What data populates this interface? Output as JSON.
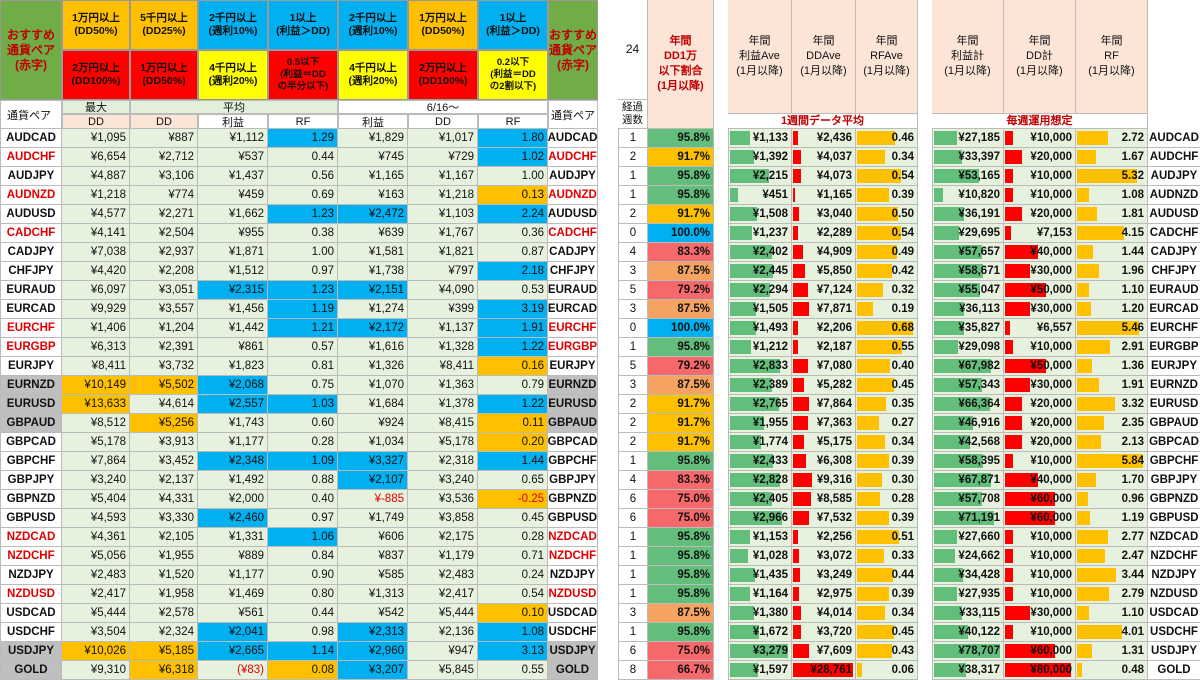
{
  "left_headers": {
    "recommend": "おすすめ\n通貨ペア\n(赤字)",
    "top": [
      "1万円以上\n(DD50%)",
      "5千円以上\n(DD25%)",
      "2千円以上\n(週利10%)",
      "1以上\n(利益＞DD)",
      "2千円以上\n(週利10%)",
      "1万円以上\n(DD50%)",
      "1以上\n(利益＞DD)"
    ],
    "bottom": [
      "2万円以上\n(DD100%)",
      "1万円以上\n(DD50%)",
      "4千円以上\n(週利20%)",
      "0.5以下\n(利益＝DD\nの半分以下)",
      "4千円以上\n(週利20%)",
      "2万円以上\n(DD100%)",
      "0.2以下\n(利益＝DD\nの2割以下)"
    ],
    "pair_label": "通貨ペア",
    "max_label": "最大",
    "avg_label": "平均",
    "date_label": "6/16～",
    "sub": [
      "DD",
      "DD",
      "利益",
      "RF",
      "利益",
      "DD",
      "RF"
    ]
  },
  "middle_headers": {
    "count": "24",
    "elapsed": "経過\n週数",
    "dd_rate": "年間\nDD1万\n以下割合\n(1月以降)"
  },
  "right_headers": {
    "cols1": [
      "年間\n利益Ave\n(1月以降)",
      "年間\nDDAve\n(1月以降)",
      "年間\nRFAve\n(1月以降)"
    ],
    "section1": "1週間データ平均",
    "cols2": [
      "年間\n利益計\n(1月以降)",
      "年間\nDD計\n(1月以降)",
      "年間\nRF\n(1月以降)"
    ],
    "section2": "毎週運用想定"
  },
  "rows": [
    {
      "pair": "AUDCAD",
      "rec": false,
      "pg": "",
      "c": [
        "¥1,095",
        "¥887",
        "¥1,112",
        "1.29",
        "¥1,829",
        "¥1,017",
        "1.80"
      ],
      "f": [
        "",
        "",
        "",
        "b",
        "",
        "",
        "b"
      ],
      "w": 1,
      "pct": "95.8%",
      "pc": "g",
      "pa": "¥1,133",
      "dda": "¥2,436",
      "rfa": "0.46",
      "pt": "¥27,185",
      "ddt": "¥10,000",
      "rft": "2.72"
    },
    {
      "pair": "AUDCHF",
      "rec": true,
      "pg": "",
      "c": [
        "¥6,654",
        "¥2,712",
        "¥537",
        "0.44",
        "¥745",
        "¥729",
        "1.02"
      ],
      "f": [
        "",
        "",
        "",
        "",
        "",
        "",
        "b"
      ],
      "w": 2,
      "pct": "91.7%",
      "pc": "y",
      "pa": "¥1,392",
      "dda": "¥4,037",
      "rfa": "0.34",
      "pt": "¥33,397",
      "ddt": "¥20,000",
      "rft": "1.67"
    },
    {
      "pair": "AUDJPY",
      "rec": false,
      "pg": "",
      "c": [
        "¥4,887",
        "¥3,106",
        "¥1,437",
        "0.56",
        "¥1,165",
        "¥1,167",
        "1.00"
      ],
      "f": [
        "",
        "",
        "",
        "",
        "",
        "",
        ""
      ],
      "w": 1,
      "pct": "95.8%",
      "pc": "g",
      "pa": "¥2,215",
      "dda": "¥4,073",
      "rfa": "0.54",
      "pt": "¥53,165",
      "ddt": "¥10,000",
      "rft": "5.32"
    },
    {
      "pair": "AUDNZD",
      "rec": true,
      "pg": "",
      "c": [
        "¥1,218",
        "¥774",
        "¥459",
        "0.69",
        "¥163",
        "¥1,218",
        "0.13"
      ],
      "f": [
        "",
        "",
        "",
        "",
        "",
        "",
        "y"
      ],
      "w": 1,
      "pct": "95.8%",
      "pc": "g",
      "pa": "¥451",
      "dda": "¥1,165",
      "rfa": "0.39",
      "pt": "¥10,820",
      "ddt": "¥10,000",
      "rft": "1.08"
    },
    {
      "pair": "AUDUSD",
      "rec": false,
      "pg": "",
      "c": [
        "¥4,577",
        "¥2,271",
        "¥1,662",
        "1.23",
        "¥2,472",
        "¥1,103",
        "2.24"
      ],
      "f": [
        "",
        "",
        "",
        "b",
        "b",
        "",
        "b"
      ],
      "w": 2,
      "pct": "91.7%",
      "pc": "y",
      "pa": "¥1,508",
      "dda": "¥3,040",
      "rfa": "0.50",
      "pt": "¥36,191",
      "ddt": "¥20,000",
      "rft": "1.81"
    },
    {
      "pair": "CADCHF",
      "rec": true,
      "pg": "",
      "c": [
        "¥4,141",
        "¥2,504",
        "¥955",
        "0.38",
        "¥639",
        "¥1,767",
        "0.36"
      ],
      "f": [
        "",
        "",
        "",
        "",
        "",
        "",
        ""
      ],
      "w": 0,
      "pct": "100.0%",
      "pc": "b",
      "pa": "¥1,237",
      "dda": "¥2,289",
      "rfa": "0.54",
      "pt": "¥29,695",
      "ddt": "¥7,153",
      "rft": "4.15"
    },
    {
      "pair": "CADJPY",
      "rec": false,
      "pg": "",
      "c": [
        "¥7,038",
        "¥2,937",
        "¥1,871",
        "1.00",
        "¥1,581",
        "¥1,821",
        "0.87"
      ],
      "f": [
        "",
        "",
        "",
        "",
        "",
        "",
        ""
      ],
      "w": 4,
      "pct": "83.3%",
      "pc": "r",
      "pa": "¥2,402",
      "dda": "¥4,909",
      "rfa": "0.49",
      "pt": "¥57,657",
      "ddt": "¥40,000",
      "rft": "1.44"
    },
    {
      "pair": "CHFJPY",
      "rec": false,
      "pg": "",
      "c": [
        "¥4,420",
        "¥2,208",
        "¥1,512",
        "0.97",
        "¥1,738",
        "¥797",
        "2.18"
      ],
      "f": [
        "",
        "",
        "",
        "",
        "",
        "",
        "b"
      ],
      "w": 3,
      "pct": "87.5%",
      "pc": "o",
      "pa": "¥2,445",
      "dda": "¥5,850",
      "rfa": "0.42",
      "pt": "¥58,671",
      "ddt": "¥30,000",
      "rft": "1.96"
    },
    {
      "pair": "EURAUD",
      "rec": false,
      "pg": "",
      "c": [
        "¥6,097",
        "¥3,051",
        "¥2,315",
        "1.23",
        "¥2,151",
        "¥4,090",
        "0.53"
      ],
      "f": [
        "",
        "",
        "b",
        "b",
        "b",
        "",
        ""
      ],
      "w": 5,
      "pct": "79.2%",
      "pc": "r",
      "pa": "¥2,294",
      "dda": "¥7,124",
      "rfa": "0.32",
      "pt": "¥55,047",
      "ddt": "¥50,000",
      "rft": "1.10"
    },
    {
      "pair": "EURCAD",
      "rec": false,
      "pg": "",
      "c": [
        "¥9,929",
        "¥3,557",
        "¥1,456",
        "1.19",
        "¥1,274",
        "¥399",
        "3.19"
      ],
      "f": [
        "",
        "",
        "",
        "b",
        "",
        "",
        "b"
      ],
      "w": 3,
      "pct": "87.5%",
      "pc": "o",
      "pa": "¥1,505",
      "dda": "¥7,871",
      "rfa": "0.19",
      "pt": "¥36,113",
      "ddt": "¥30,000",
      "rft": "1.20"
    },
    {
      "pair": "EURCHF",
      "rec": true,
      "pg": "",
      "c": [
        "¥1,406",
        "¥1,204",
        "¥1,442",
        "1.21",
        "¥2,172",
        "¥1,137",
        "1.91"
      ],
      "f": [
        "",
        "",
        "",
        "b",
        "b",
        "",
        "b"
      ],
      "w": 0,
      "pct": "100.0%",
      "pc": "b",
      "pa": "¥1,493",
      "dda": "¥2,206",
      "rfa": "0.68",
      "pt": "¥35,827",
      "ddt": "¥6,557",
      "rft": "5.46"
    },
    {
      "pair": "EURGBP",
      "rec": true,
      "pg": "",
      "c": [
        "¥6,313",
        "¥2,391",
        "¥861",
        "0.57",
        "¥1,616",
        "¥1,328",
        "1.22"
      ],
      "f": [
        "",
        "",
        "",
        "",
        "",
        "",
        "b"
      ],
      "w": 1,
      "pct": "95.8%",
      "pc": "g",
      "pa": "¥1,212",
      "dda": "¥2,187",
      "rfa": "0.55",
      "pt": "¥29,098",
      "ddt": "¥10,000",
      "rft": "2.91"
    },
    {
      "pair": "EURJPY",
      "rec": false,
      "pg": "",
      "c": [
        "¥8,411",
        "¥3,732",
        "¥1,823",
        "0.81",
        "¥1,326",
        "¥8,411",
        "0.16"
      ],
      "f": [
        "",
        "",
        "",
        "",
        "",
        "",
        "y"
      ],
      "w": 5,
      "pct": "79.2%",
      "pc": "r",
      "pa": "¥2,833",
      "dda": "¥7,080",
      "rfa": "0.40",
      "pt": "¥67,982",
      "ddt": "¥50,000",
      "rft": "1.36"
    },
    {
      "pair": "EURNZD",
      "rec": false,
      "pg": "gr",
      "c": [
        "¥10,149",
        "¥5,502",
        "¥2,068",
        "0.75",
        "¥1,070",
        "¥1,363",
        "0.79"
      ],
      "f": [
        "y",
        "y",
        "b",
        "",
        "",
        "",
        ""
      ],
      "w": 3,
      "pct": "87.5%",
      "pc": "o",
      "pa": "¥2,389",
      "dda": "¥5,282",
      "rfa": "0.45",
      "pt": "¥57,343",
      "ddt": "¥30,000",
      "rft": "1.91"
    },
    {
      "pair": "EURUSD",
      "rec": false,
      "pg": "gr",
      "c": [
        "¥13,633",
        "¥4,614",
        "¥2,557",
        "1.03",
        "¥1,684",
        "¥1,378",
        "1.22"
      ],
      "f": [
        "y",
        "",
        "b",
        "b",
        "",
        "",
        "b"
      ],
      "w": 2,
      "pct": "91.7%",
      "pc": "y",
      "pa": "¥2,765",
      "dda": "¥7,864",
      "rfa": "0.35",
      "pt": "¥66,364",
      "ddt": "¥20,000",
      "rft": "3.32"
    },
    {
      "pair": "GBPAUD",
      "rec": false,
      "pg": "gr",
      "c": [
        "¥8,512",
        "¥5,256",
        "¥1,743",
        "0.60",
        "¥924",
        "¥8,415",
        "0.11"
      ],
      "f": [
        "",
        "y",
        "",
        "",
        "",
        "",
        "y"
      ],
      "w": 2,
      "pct": "91.7%",
      "pc": "y",
      "pa": "¥1,955",
      "dda": "¥7,363",
      "rfa": "0.27",
      "pt": "¥46,916",
      "ddt": "¥20,000",
      "rft": "2.35"
    },
    {
      "pair": "GBPCAD",
      "rec": false,
      "pg": "",
      "c": [
        "¥5,178",
        "¥3,913",
        "¥1,177",
        "0.28",
        "¥1,034",
        "¥5,178",
        "0.20"
      ],
      "f": [
        "",
        "",
        "",
        "",
        "",
        "",
        "y"
      ],
      "w": 2,
      "pct": "91.7%",
      "pc": "y",
      "pa": "¥1,774",
      "dda": "¥5,175",
      "rfa": "0.34",
      "pt": "¥42,568",
      "ddt": "¥20,000",
      "rft": "2.13"
    },
    {
      "pair": "GBPCHF",
      "rec": false,
      "pg": "",
      "c": [
        "¥7,864",
        "¥3,452",
        "¥2,348",
        "1.09",
        "¥3,327",
        "¥2,318",
        "1.44"
      ],
      "f": [
        "",
        "",
        "b",
        "b",
        "b",
        "",
        "b"
      ],
      "w": 1,
      "pct": "95.8%",
      "pc": "g",
      "pa": "¥2,433",
      "dda": "¥6,308",
      "rfa": "0.39",
      "pt": "¥58,395",
      "ddt": "¥10,000",
      "rft": "5.84"
    },
    {
      "pair": "GBPJPY",
      "rec": false,
      "pg": "",
      "c": [
        "¥3,240",
        "¥2,137",
        "¥1,492",
        "0.88",
        "¥2,107",
        "¥3,240",
        "0.65"
      ],
      "f": [
        "",
        "",
        "",
        "",
        "b",
        "",
        ""
      ],
      "w": 4,
      "pct": "83.3%",
      "pc": "r",
      "pa": "¥2,828",
      "dda": "¥9,316",
      "rfa": "0.30",
      "pt": "¥67,871",
      "ddt": "¥40,000",
      "rft": "1.70"
    },
    {
      "pair": "GBPNZD",
      "rec": false,
      "pg": "",
      "c": [
        "¥5,404",
        "¥4,331",
        "¥2,000",
        "0.40",
        "¥-885",
        "¥3,536",
        "-0.25"
      ],
      "f": [
        "",
        "",
        "",
        "",
        "rd",
        "",
        "y rd"
      ],
      "w": 6,
      "pct": "75.0%",
      "pc": "r",
      "pa": "¥2,405",
      "dda": "¥8,585",
      "rfa": "0.28",
      "pt": "¥57,708",
      "ddt": "¥60,000",
      "rft": "0.96"
    },
    {
      "pair": "GBPUSD",
      "rec": false,
      "pg": "",
      "c": [
        "¥4,593",
        "¥3,330",
        "¥2,460",
        "0.97",
        "¥1,749",
        "¥3,858",
        "0.45"
      ],
      "f": [
        "",
        "",
        "b",
        "",
        "",
        "",
        ""
      ],
      "w": 6,
      "pct": "75.0%",
      "pc": "r",
      "pa": "¥2,966",
      "dda": "¥7,532",
      "rfa": "0.39",
      "pt": "¥71,191",
      "ddt": "¥60,000",
      "rft": "1.19"
    },
    {
      "pair": "NZDCAD",
      "rec": true,
      "pg": "",
      "c": [
        "¥4,361",
        "¥2,105",
        "¥1,331",
        "1.06",
        "¥606",
        "¥2,175",
        "0.28"
      ],
      "f": [
        "",
        "",
        "",
        "b",
        "",
        "",
        ""
      ],
      "w": 1,
      "pct": "95.8%",
      "pc": "g",
      "pa": "¥1,153",
      "dda": "¥2,256",
      "rfa": "0.51",
      "pt": "¥27,660",
      "ddt": "¥10,000",
      "rft": "2.77"
    },
    {
      "pair": "NZDCHF",
      "rec": true,
      "pg": "",
      "c": [
        "¥5,056",
        "¥1,955",
        "¥889",
        "0.84",
        "¥837",
        "¥1,179",
        "0.71"
      ],
      "f": [
        "",
        "",
        "",
        "",
        "",
        "",
        ""
      ],
      "w": 1,
      "pct": "95.8%",
      "pc": "g",
      "pa": "¥1,028",
      "dda": "¥3,072",
      "rfa": "0.33",
      "pt": "¥24,662",
      "ddt": "¥10,000",
      "rft": "2.47"
    },
    {
      "pair": "NZDJPY",
      "rec": false,
      "pg": "",
      "c": [
        "¥2,483",
        "¥1,520",
        "¥1,177",
        "0.90",
        "¥585",
        "¥2,483",
        "0.24"
      ],
      "f": [
        "",
        "",
        "",
        "",
        "",
        "",
        ""
      ],
      "w": 1,
      "pct": "95.8%",
      "pc": "g",
      "pa": "¥1,435",
      "dda": "¥3,249",
      "rfa": "0.44",
      "pt": "¥34,428",
      "ddt": "¥10,000",
      "rft": "3.44"
    },
    {
      "pair": "NZDUSD",
      "rec": true,
      "pg": "",
      "c": [
        "¥2,417",
        "¥1,958",
        "¥1,469",
        "0.80",
        "¥1,313",
        "¥2,417",
        "0.54"
      ],
      "f": [
        "",
        "",
        "",
        "",
        "",
        "",
        ""
      ],
      "w": 1,
      "pct": "95.8%",
      "pc": "g",
      "pa": "¥1,164",
      "dda": "¥2,975",
      "rfa": "0.39",
      "pt": "¥27,935",
      "ddt": "¥10,000",
      "rft": "2.79"
    },
    {
      "pair": "USDCAD",
      "rec": false,
      "pg": "",
      "c": [
        "¥5,444",
        "¥2,578",
        "¥561",
        "0.44",
        "¥542",
        "¥5,444",
        "0.10"
      ],
      "f": [
        "",
        "",
        "",
        "",
        "",
        "",
        "y"
      ],
      "w": 3,
      "pct": "87.5%",
      "pc": "o",
      "pa": "¥1,380",
      "dda": "¥4,014",
      "rfa": "0.34",
      "pt": "¥33,115",
      "ddt": "¥30,000",
      "rft": "1.10"
    },
    {
      "pair": "USDCHF",
      "rec": false,
      "pg": "",
      "c": [
        "¥3,504",
        "¥2,324",
        "¥2,041",
        "0.98",
        "¥2,313",
        "¥2,136",
        "1.08"
      ],
      "f": [
        "",
        "",
        "b",
        "",
        "b",
        "",
        "b"
      ],
      "w": 1,
      "pct": "95.8%",
      "pc": "g",
      "pa": "¥1,672",
      "dda": "¥3,720",
      "rfa": "0.45",
      "pt": "¥40,122",
      "ddt": "¥10,000",
      "rft": "4.01"
    },
    {
      "pair": "USDJPY",
      "rec": false,
      "pg": "gr",
      "c": [
        "¥10,026",
        "¥5,185",
        "¥2,665",
        "1.14",
        "¥2,960",
        "¥947",
        "3.13"
      ],
      "f": [
        "y",
        "y",
        "b",
        "b",
        "b",
        "",
        "b"
      ],
      "w": 6,
      "pct": "75.0%",
      "pc": "r",
      "pa": "¥3,279",
      "dda": "¥7,609",
      "rfa": "0.43",
      "pt": "¥78,707",
      "ddt": "¥60,000",
      "rft": "1.31"
    },
    {
      "pair": "GOLD",
      "rec": false,
      "pg": "gr",
      "c": [
        "¥9,310",
        "¥6,318",
        "(¥83)",
        "0.08",
        "¥3,207",
        "¥5,845",
        "0.55"
      ],
      "f": [
        "",
        "y",
        "rd",
        "y",
        "b",
        "",
        ""
      ],
      "w": 8,
      "pct": "66.7%",
      "pc": "r",
      "pa": "¥1,597",
      "dda": "¥28,761",
      "rfa": "0.06",
      "pt": "¥38,317",
      "ddt": "¥80,000",
      "rft": "0.48"
    }
  ],
  "colors": {
    "green": "#63be7b",
    "yellow": "#ffc000",
    "blue": "#00b0f0",
    "red": "#ff0000",
    "pink_header": "#fce4d6",
    "light_green": "#e6f2de",
    "gray": "#bfbfbf",
    "orange": "#f4a460",
    "salmon": "#f8696b"
  }
}
